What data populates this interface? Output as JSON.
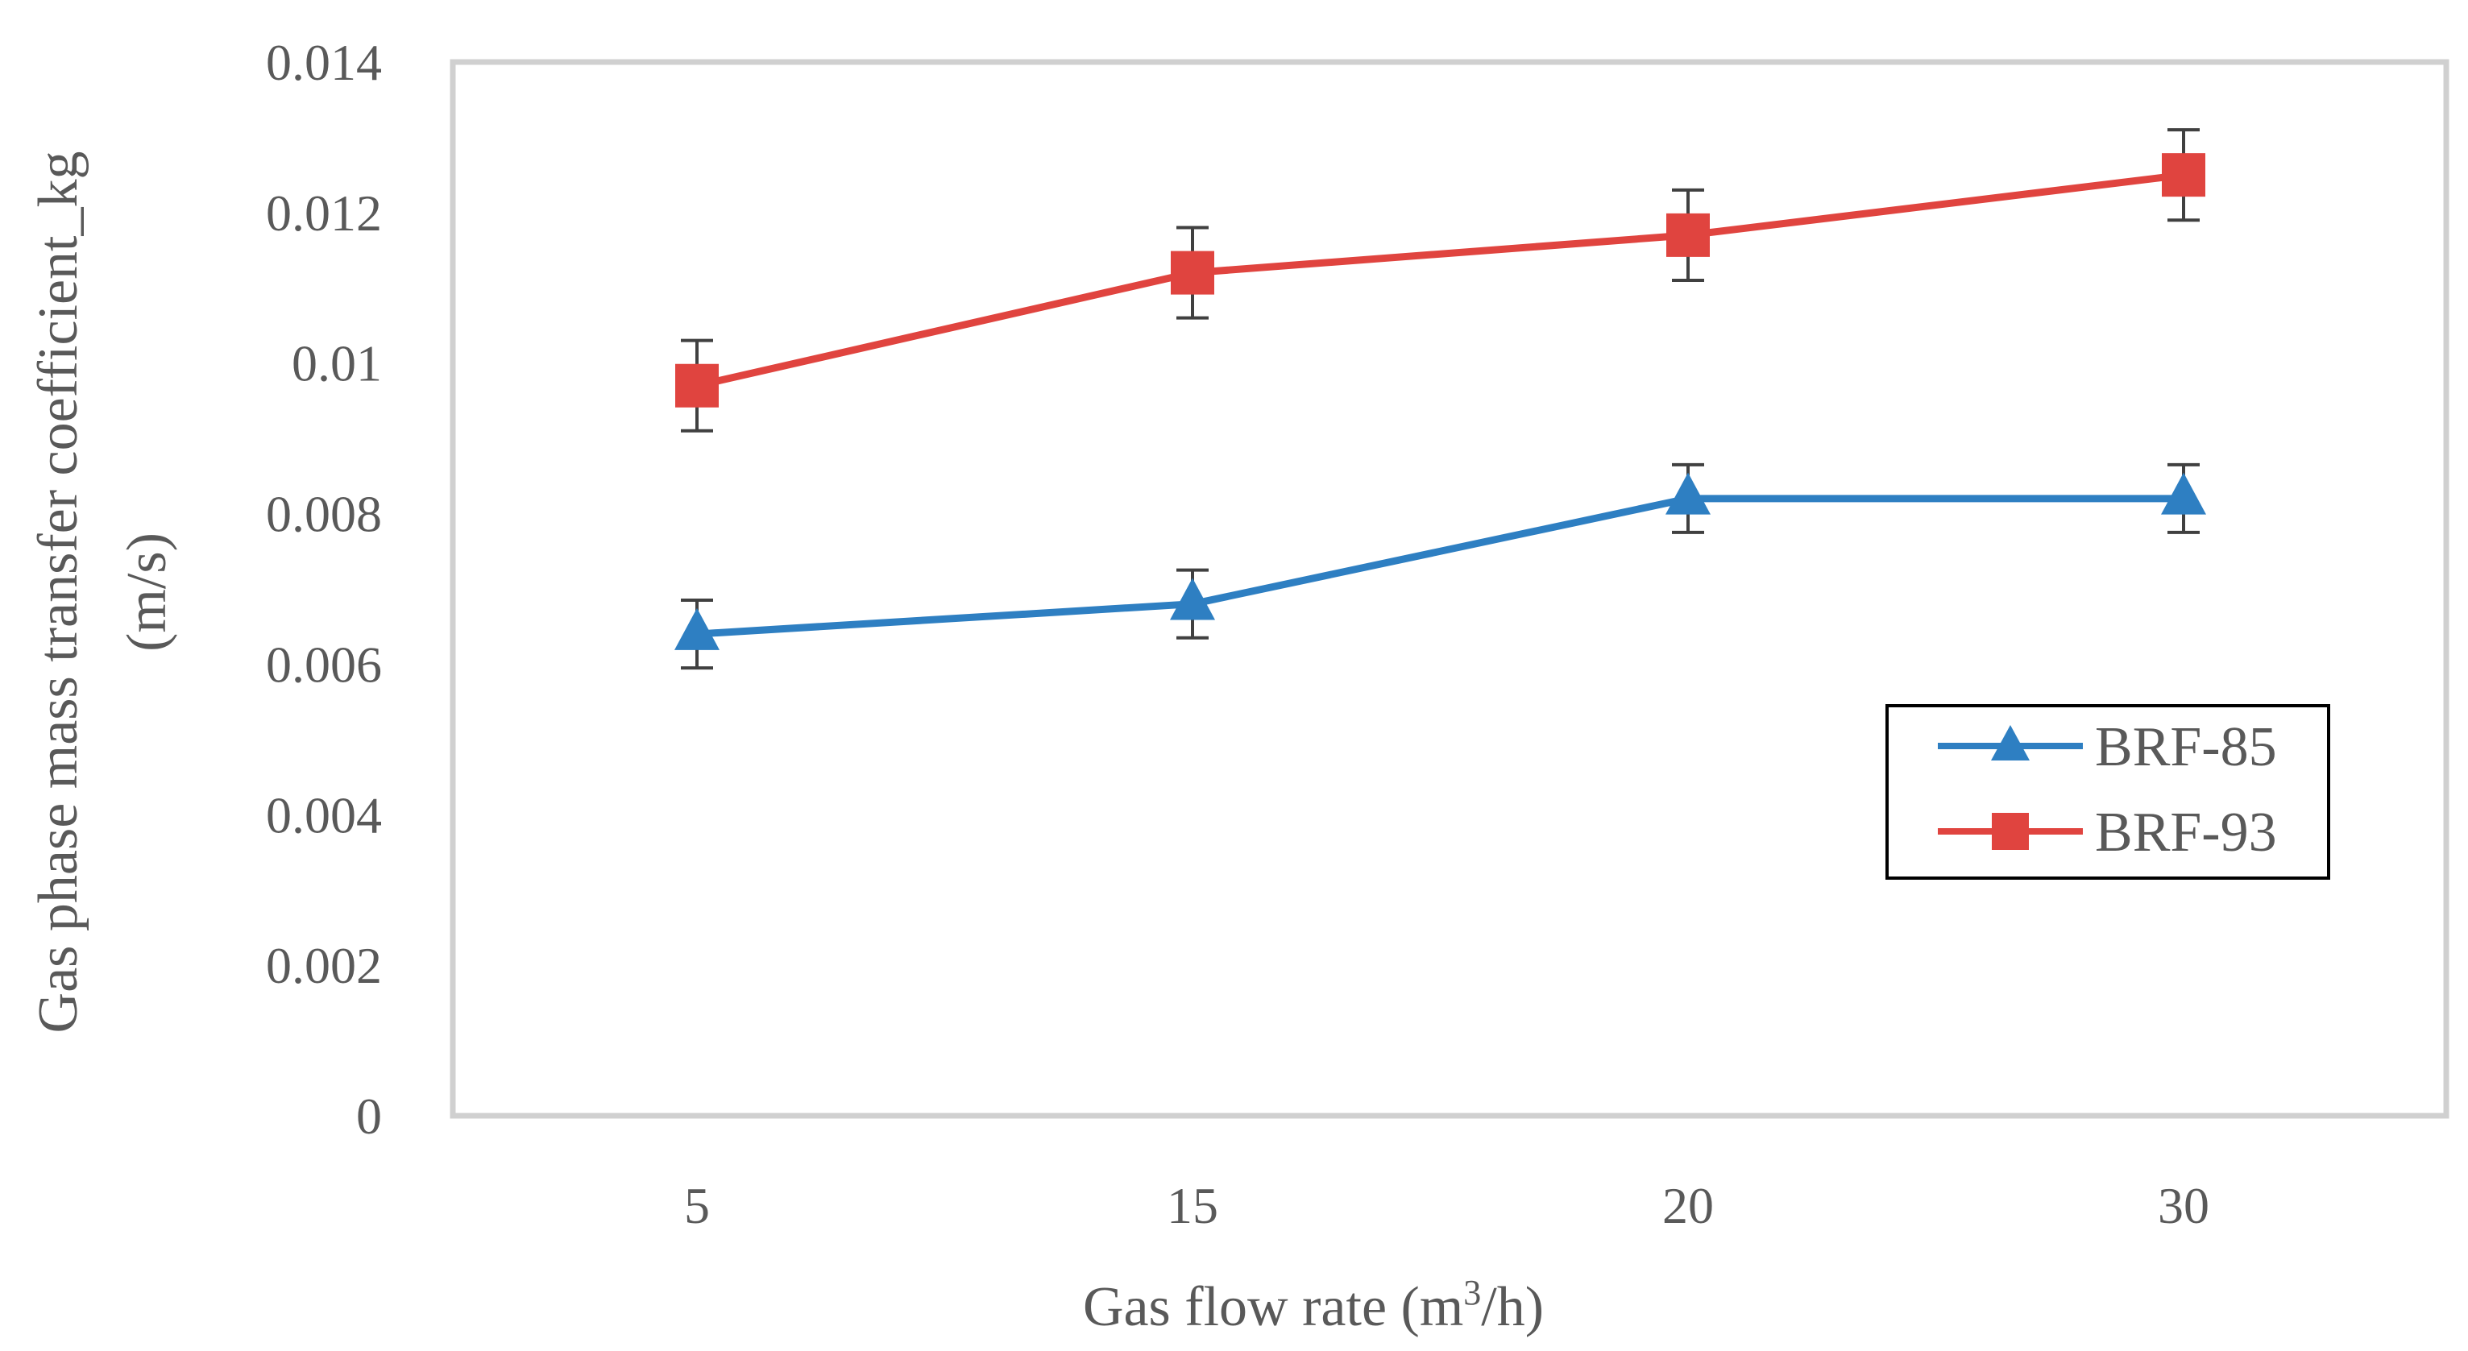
{
  "chart_data": {
    "type": "line",
    "title": "",
    "xlabel": "Gas flow rate (m",
    "xlabel_superscript": "3",
    "xlabel_suffix": "/h)",
    "ylabel_line1": "Gas phase mass transfer coefficient_kg",
    "ylabel_line2": "(m/s)",
    "categories": [
      "5",
      "15",
      "20",
      "30"
    ],
    "yticks": [
      "0",
      "0.002",
      "0.004",
      "0.006",
      "0.008",
      "0.01",
      "0.012",
      "0.014"
    ],
    "ylim": [
      0,
      0.014
    ],
    "series": [
      {
        "name": "BRF-85",
        "color": "#2E7FC2",
        "marker": "triangle",
        "values": [
          0.0064,
          0.0068,
          0.0082,
          0.0082
        ],
        "error": [
          0.00045,
          0.00045,
          0.00045,
          0.00045
        ]
      },
      {
        "name": "BRF-93",
        "color": "#E0443F",
        "marker": "square",
        "values": [
          0.0097,
          0.0112,
          0.0117,
          0.0125
        ],
        "error": [
          0.0006,
          0.0006,
          0.0006,
          0.0006
        ]
      }
    ],
    "legend_position": "right",
    "grid": false
  }
}
